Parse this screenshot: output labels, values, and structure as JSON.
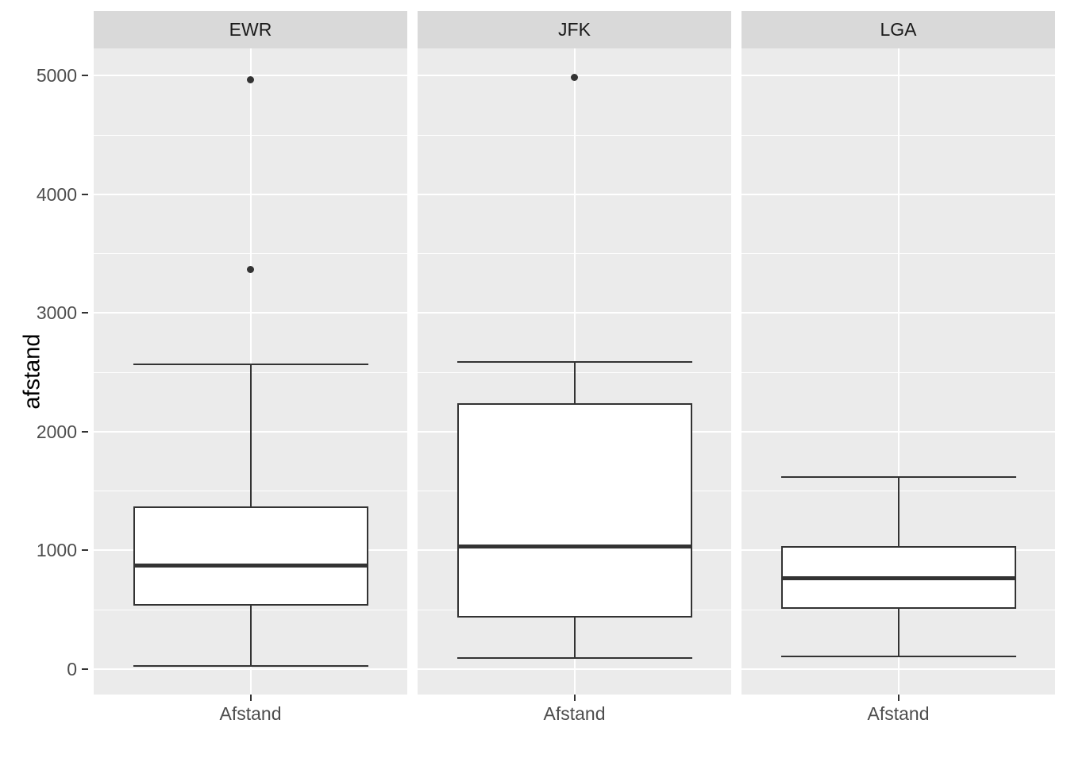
{
  "chart_data": {
    "type": "boxplot",
    "title": "",
    "xlabel": "",
    "ylabel": "afstand",
    "faceted": true,
    "facet_labels": [
      "EWR",
      "JFK",
      "LGA"
    ],
    "x_tick_label": "Afstand",
    "y_ticks": [
      0,
      1000,
      2000,
      3000,
      4000,
      5000
    ],
    "y_minor_ticks": [
      500,
      1500,
      2500,
      3500,
      4500
    ],
    "ylim": [
      -215,
      5230
    ],
    "grid": "major-and-minor, white on grey panel",
    "legend": "none",
    "facets": [
      {
        "label": "EWR",
        "x_category": "Afstand",
        "stats": {
          "whisker_low": 25,
          "q1": 533,
          "median": 875,
          "q3": 1370,
          "whisker_high": 2565
        },
        "outliers": [
          3370,
          4963
        ]
      },
      {
        "label": "JFK",
        "x_category": "Afstand",
        "stats": {
          "whisker_low": 95,
          "q1": 432,
          "median": 1030,
          "q3": 2240,
          "whisker_high": 2586
        },
        "outliers": [
          4983
        ]
      },
      {
        "label": "LGA",
        "x_category": "Afstand",
        "stats": {
          "whisker_low": 105,
          "q1": 510,
          "median": 762,
          "q3": 1038,
          "whisker_high": 1620
        },
        "outliers": []
      }
    ],
    "colors": {
      "background": "#ffffff",
      "panel_background": "#ebebeb",
      "strip_background": "#d9d9d9",
      "gridline": "#ffffff",
      "box_outline": "#333333",
      "box_fill": "#ffffff",
      "median_line": "#333333",
      "outlier_point": "#333333",
      "axis_text": "#4d4d4d",
      "strip_text": "#1a1a1a",
      "axis_title": "#000000"
    }
  }
}
